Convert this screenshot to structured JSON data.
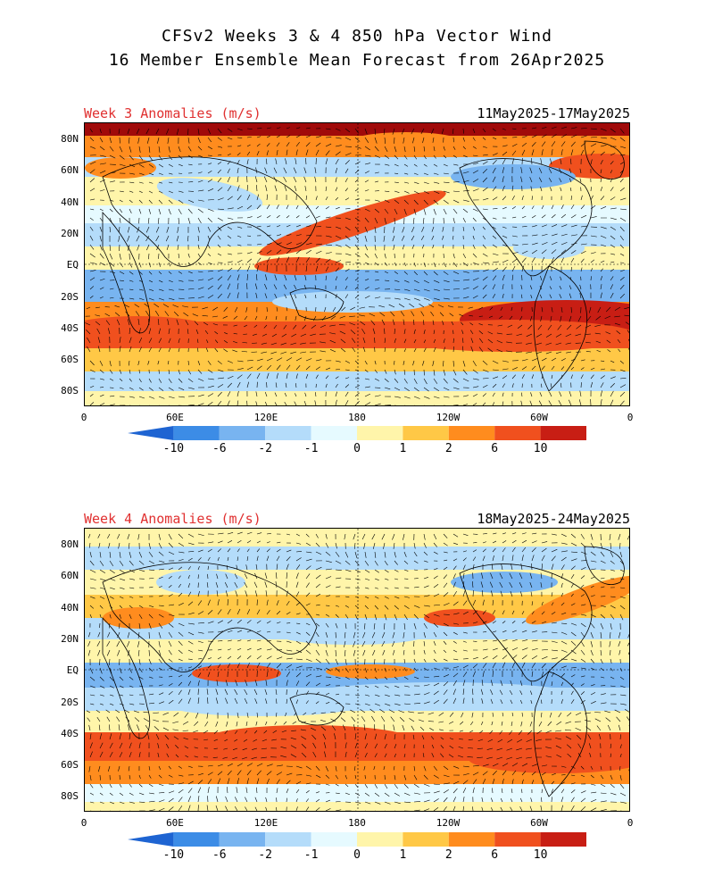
{
  "titles": {
    "line1": "CFSv2 Weeks 3 & 4 850 hPa Vector Wind",
    "line2": "16 Member Ensemble Mean Forecast from 26Apr2025"
  },
  "panels": [
    {
      "label": "Week 3 Anomalies (m/s)",
      "dates": "11May2025-17May2025"
    },
    {
      "label": "Week 4 Anomalies (m/s)",
      "dates": "18May2025-24May2025"
    }
  ],
  "axes": {
    "y_ticks": [
      "80N",
      "60N",
      "40N",
      "20N",
      "EQ",
      "20S",
      "40S",
      "60S",
      "80S"
    ],
    "x_ticks": [
      "0",
      "60E",
      "120E",
      "180",
      "120W",
      "60W",
      "0"
    ]
  },
  "colorbar": {
    "labels": [
      "-10",
      "-6",
      "-2",
      "-1",
      "0",
      "1",
      "2",
      "6",
      "10"
    ],
    "colors": [
      "#1e64d2",
      "#3c8ce6",
      "#78b4f0",
      "#b4dcfa",
      "#e6faff",
      "#fff5aa",
      "#ffc846",
      "#ff8c1e",
      "#f0501e",
      "#c81e14",
      "#a00a0a"
    ]
  }
}
